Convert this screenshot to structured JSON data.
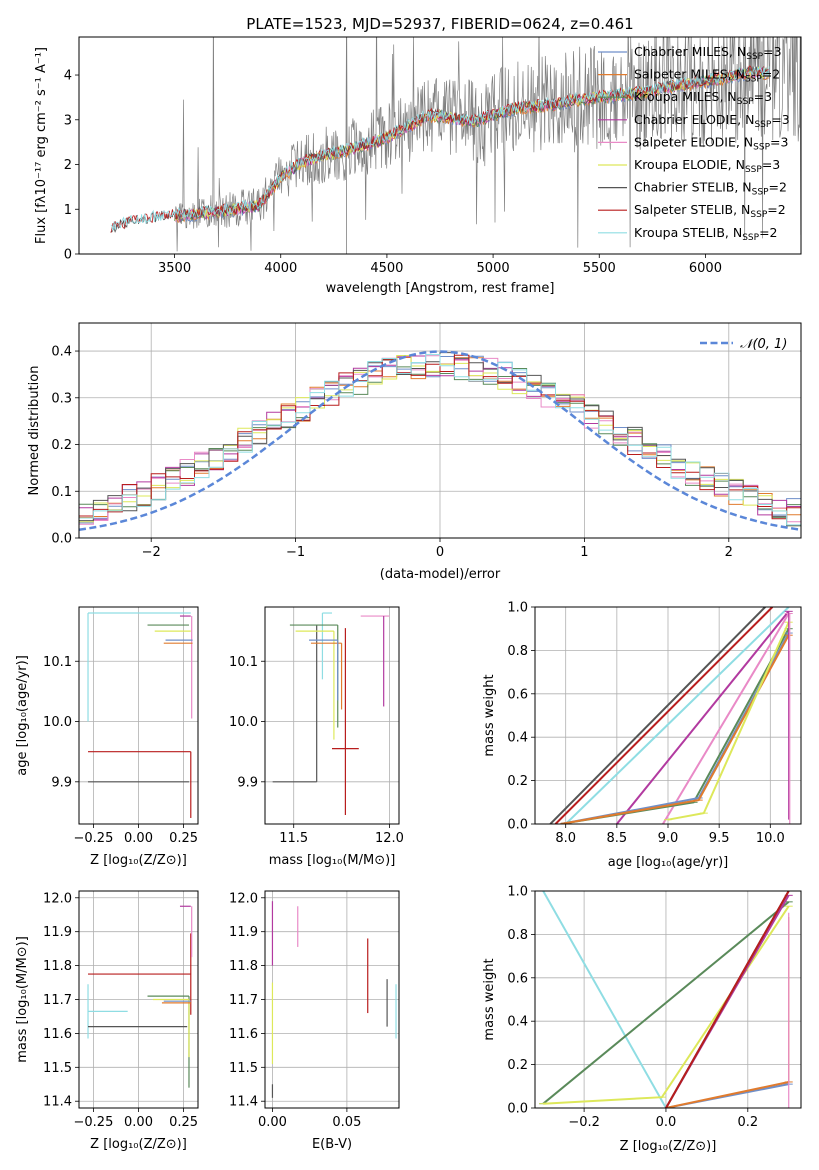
{
  "figure": {
    "title": "PLATE=1523, MJD=52937, FIBERID=0624, z=0.461"
  },
  "colors": {
    "chabrier_miles": "#6f8fc9",
    "salpeter_miles": "#e07b2e",
    "kroupa_miles": "#5a8a5a",
    "chabrier_elodie": "#b23aa0",
    "salpeter_elodie": "#e98ac7",
    "kroupa_elodie": "#dde85a",
    "chabrier_stelib": "#555555",
    "salpeter_stelib": "#b81d1d",
    "kroupa_stelib": "#8fdde3",
    "data": "#808080",
    "gaussian": "#5b87d8"
  },
  "chart_data": [
    {
      "id": "spectrum",
      "type": "line",
      "xlabel": "wavelength [Angstrom, rest frame]",
      "ylabel": "Flux [fλ10⁻¹⁷ erg cm⁻² s⁻¹ A⁻¹]",
      "xlim": [
        3050,
        6450
      ],
      "ylim": [
        0,
        4.85
      ],
      "xticks": [
        "3500",
        "4000",
        "4500",
        "5000",
        "5500",
        "6000"
      ],
      "yticks": [
        "0",
        "1",
        "2",
        "3",
        "4"
      ],
      "legend_loc": "upper right",
      "legend": [
        {
          "label": "Chabrier MILES, N",
          "sub": "SSP",
          "suffix": "=3",
          "color_key": "chabrier_miles"
        },
        {
          "label": "Salpeter MILES, N",
          "sub": "SSP",
          "suffix": "=2",
          "color_key": "salpeter_miles"
        },
        {
          "label": "Kroupa MILES, N",
          "sub": "SSP",
          "suffix": "=3",
          "color_key": "kroupa_miles"
        },
        {
          "label": "Chabrier ELODIE, N",
          "sub": "SSP",
          "suffix": "=3",
          "color_key": "chabrier_elodie"
        },
        {
          "label": "Salpeter ELODIE, N",
          "sub": "SSP",
          "suffix": "=3",
          "color_key": "salpeter_elodie"
        },
        {
          "label": "Kroupa ELODIE, N",
          "sub": "SSP",
          "suffix": "=3",
          "color_key": "kroupa_elodie"
        },
        {
          "label": "Chabrier STELIB, N",
          "sub": "SSP",
          "suffix": "=2",
          "color_key": "chabrier_stelib"
        },
        {
          "label": "Salpeter STELIB, N",
          "sub": "SSP",
          "suffix": "=2",
          "color_key": "salpeter_stelib"
        },
        {
          "label": "Kroupa STELIB, N",
          "sub": "SSP",
          "suffix": "=2",
          "color_key": "kroupa_stelib"
        }
      ],
      "model_curve": {
        "x": [
          3200,
          3300,
          3400,
          3500,
          3600,
          3700,
          3800,
          3900,
          4000,
          4100,
          4200,
          4300,
          4400,
          4500,
          4600,
          4700,
          4800,
          4900,
          5000,
          5100,
          5200,
          5300,
          5400,
          5500,
          5600,
          5700,
          5800,
          5900,
          6000,
          6100,
          6200
        ],
        "y": [
          0.55,
          0.72,
          0.8,
          0.85,
          0.9,
          0.95,
          1.0,
          1.1,
          1.7,
          2.05,
          2.2,
          2.3,
          2.45,
          2.6,
          2.85,
          3.1,
          3.05,
          2.95,
          3.1,
          3.25,
          3.3,
          3.35,
          3.45,
          3.5,
          3.55,
          3.6,
          3.7,
          3.8,
          3.85,
          3.95,
          4.05
        ]
      },
      "data_noise": {
        "x_start": 3500,
        "x_end": 6450,
        "ymax": 4.85
      }
    },
    {
      "id": "residuals",
      "type": "histogram",
      "xlabel": "(data-model)/error",
      "ylabel": "Normed distribution",
      "xlim": [
        -2.5,
        2.5
      ],
      "ylim": [
        0,
        0.46
      ],
      "xticks": [
        "−2",
        "−1",
        "0",
        "1",
        "2"
      ],
      "yticks": [
        "0.0",
        "0.1",
        "0.2",
        "0.3",
        "0.4"
      ],
      "legend": [
        {
          "label": "𝒩(0, 1)",
          "color_key": "gaussian"
        }
      ],
      "bin_width": 0.1,
      "base_heights_note": "per-bin values follow N(0,1) with scatter",
      "series_colors": [
        "chabrier_miles",
        "salpeter_miles",
        "kroupa_miles",
        "chabrier_elodie",
        "salpeter_elodie",
        "kroupa_elodie",
        "chabrier_stelib",
        "salpeter_stelib",
        "kroupa_stelib"
      ]
    },
    {
      "id": "age_vs_Z",
      "type": "errorbar",
      "xlabel": "Z [log₁₀(Z/Z⊙)]",
      "ylabel": "age  [log₁₀(age/yr)]",
      "xlim": [
        -0.33,
        0.33
      ],
      "ylim": [
        9.83,
        10.19
      ],
      "xticks": [
        "−0.25",
        "0.00",
        "0.25"
      ],
      "xtick_values": [
        -0.25,
        0.0,
        0.25
      ],
      "yticks": [
        "9.9",
        "10.0",
        "10.1"
      ],
      "ytick_values": [
        9.9,
        10.0,
        10.1
      ],
      "points": [
        {
          "color_key": "kroupa_stelib",
          "x": -0.28,
          "xerr": [
            0.0,
            0.57
          ],
          "y": 10.18,
          "yerr": [
            0.18,
            0.0
          ]
        },
        {
          "color_key": "salpeter_stelib",
          "x": 0.29,
          "xerr": [
            0.57,
            0.0
          ],
          "y": 9.95,
          "yerr": [
            0.11,
            0.0
          ]
        },
        {
          "color_key": "chabrier_stelib",
          "x": 0.28,
          "xerr": [
            0.56,
            0.0
          ],
          "y": 9.9,
          "yerr": [
            0.0,
            0.0
          ]
        },
        {
          "color_key": "chabrier_elodie",
          "x": 0.29,
          "xerr": [
            0.06,
            0.0
          ],
          "y": 10.175,
          "yerr": [
            0.0,
            0.0
          ]
        },
        {
          "color_key": "salpeter_elodie",
          "x": 0.295,
          "xerr": [
            0.0,
            0.0
          ],
          "y": 10.175,
          "yerr": [
            0.17,
            0.0
          ]
        },
        {
          "color_key": "kroupa_miles",
          "x": 0.28,
          "xerr": [
            0.23,
            0.0
          ],
          "y": 10.16,
          "yerr": [
            0.0,
            0.0
          ]
        },
        {
          "color_key": "kroupa_elodie",
          "x": 0.29,
          "xerr": [
            0.2,
            0.0
          ],
          "y": 10.15,
          "yerr": [
            0.0,
            0.0
          ]
        },
        {
          "color_key": "salpeter_miles",
          "x": 0.3,
          "xerr": [
            0.16,
            0.0
          ],
          "y": 10.13,
          "yerr": [
            0.0,
            0.0
          ]
        },
        {
          "color_key": "chabrier_miles",
          "x": 0.3,
          "xerr": [
            0.15,
            0.0
          ],
          "y": 10.135,
          "yerr": [
            0.0,
            0.0
          ]
        }
      ]
    },
    {
      "id": "age_vs_mass",
      "type": "errorbar",
      "xlabel": "mass [log₁₀(M/M⊙)]",
      "ylabel": "",
      "xlim": [
        11.35,
        12.05
      ],
      "ylim": [
        9.83,
        10.19
      ],
      "xticks": [
        "11.5",
        "12.0"
      ],
      "xtick_values": [
        11.5,
        12.0
      ],
      "yticks": [
        "9.9",
        "10.0",
        "10.1"
      ],
      "ytick_values": [
        9.9,
        10.0,
        10.1
      ],
      "points": [
        {
          "color_key": "salpeter_elodie",
          "x": 11.85,
          "xerr": [
            0.0,
            0.15
          ],
          "y": 10.175,
          "yerr": [
            0.0,
            0.0
          ]
        },
        {
          "color_key": "chabrier_elodie",
          "x": 11.97,
          "xerr": [
            0.0,
            0.0
          ],
          "y": 10.175,
          "yerr": [
            0.15,
            0.0
          ]
        },
        {
          "color_key": "kroupa_stelib",
          "x": 11.65,
          "xerr": [
            0.0,
            0.05
          ],
          "y": 10.18,
          "yerr": [
            0.11,
            0.0
          ]
        },
        {
          "color_key": "chabrier_stelib",
          "x": 11.62,
          "xerr": [
            0.23,
            0.0
          ],
          "y": 9.9,
          "yerr": [
            0.0,
            0.26
          ]
        },
        {
          "color_key": "salpeter_stelib",
          "x": 11.77,
          "xerr": [
            0.07,
            0.07
          ],
          "y": 9.955,
          "yerr": [
            0.11,
            0.2
          ]
        },
        {
          "color_key": "kroupa_miles",
          "x": 11.73,
          "xerr": [
            0.25,
            0.0
          ],
          "y": 10.16,
          "yerr": [
            0.17,
            0.0
          ]
        },
        {
          "color_key": "kroupa_elodie",
          "x": 11.71,
          "xerr": [
            0.2,
            0.0
          ],
          "y": 10.15,
          "yerr": [
            0.18,
            0.0
          ]
        },
        {
          "color_key": "salpeter_miles",
          "x": 11.75,
          "xerr": [
            0.16,
            0.0
          ],
          "y": 10.13,
          "yerr": [
            0.11,
            0.0
          ]
        },
        {
          "color_key": "chabrier_miles",
          "x": 11.73,
          "xerr": [
            0.15,
            0.0
          ],
          "y": 10.135,
          "yerr": [
            0.1,
            0.0
          ]
        }
      ]
    },
    {
      "id": "weight_vs_age",
      "type": "line",
      "xlabel": "age  [log₁₀(age/yr)]",
      "ylabel": "mass weight",
      "xlim": [
        7.7,
        10.3
      ],
      "ylim": [
        0,
        1.0
      ],
      "xticks": [
        "8.0",
        "8.5",
        "9.0",
        "9.5",
        "10.0"
      ],
      "xtick_values": [
        8.0,
        8.5,
        9.0,
        9.5,
        10.0
      ],
      "yticks": [
        "0.0",
        "0.2",
        "0.4",
        "0.6",
        "0.8",
        "1.0"
      ],
      "ytick_values": [
        0.0,
        0.2,
        0.4,
        0.6,
        0.8,
        1.0
      ],
      "series": [
        {
          "color_key": "chabrier_stelib",
          "x": [
            7.85,
            9.95
          ],
          "y": [
            0.0,
            1.0
          ]
        },
        {
          "color_key": "salpeter_stelib",
          "x": [
            7.9,
            10.02
          ],
          "y": [
            0.0,
            1.0
          ]
        },
        {
          "color_key": "kroupa_stelib",
          "x": [
            8.0,
            10.18
          ],
          "y": [
            0.0,
            1.0
          ]
        },
        {
          "color_key": "chabrier_elodie",
          "x": [
            8.5,
            10.18
          ],
          "y": [
            0.0,
            0.98
          ]
        },
        {
          "color_key": "salpeter_elodie",
          "x": [
            8.95,
            10.18
          ],
          "y": [
            0.0,
            0.97
          ]
        },
        {
          "color_key": "kroupa_miles",
          "x": [
            7.95,
            9.25,
            10.18
          ],
          "y": [
            0.0,
            0.1,
            0.9
          ]
        },
        {
          "color_key": "chabrier_miles",
          "x": [
            7.95,
            9.3,
            10.18
          ],
          "y": [
            0.0,
            0.12,
            0.88
          ]
        },
        {
          "color_key": "salpeter_miles",
          "x": [
            7.95,
            9.3,
            10.18
          ],
          "y": [
            0.0,
            0.11,
            0.87
          ]
        },
        {
          "color_key": "kroupa_elodie",
          "x": [
            9.0,
            9.35,
            10.18
          ],
          "y": [
            0.02,
            0.05,
            0.93
          ]
        }
      ],
      "vbars": [
        {
          "color_key": "chabrier_elodie",
          "x": 10.18,
          "y": [
            0.02,
            0.98
          ]
        },
        {
          "color_key": "salpeter_elodie",
          "x": 10.19,
          "y": [
            0.0,
            0.97
          ]
        }
      ]
    },
    {
      "id": "mass_vs_Z",
      "type": "errorbar",
      "xlabel": "Z [log₁₀(Z/Z⊙)]",
      "ylabel": "mass [log₁₀(M/M⊙)]",
      "xlim": [
        -0.33,
        0.33
      ],
      "ylim": [
        11.38,
        12.02
      ],
      "xticks": [
        "−0.25",
        "0.00",
        "0.25"
      ],
      "xtick_values": [
        -0.25,
        0.0,
        0.25
      ],
      "yticks": [
        "11.4",
        "11.5",
        "11.6",
        "11.7",
        "11.8",
        "11.9",
        "12.0"
      ],
      "ytick_values": [
        11.4,
        11.5,
        11.6,
        11.7,
        11.8,
        11.9,
        12.0
      ],
      "points": [
        {
          "color_key": "salpeter_stelib",
          "x": 0.29,
          "xerr": [
            0.57,
            0.0
          ],
          "y": 11.775,
          "yerr": [
            0.12,
            0.12
          ]
        },
        {
          "color_key": "kroupa_stelib",
          "x": -0.28,
          "xerr": [
            0.0,
            0.22
          ],
          "y": 11.665,
          "yerr": [
            0.08,
            0.08
          ]
        },
        {
          "color_key": "chabrier_stelib",
          "x": 0.27,
          "xerr": [
            0.55,
            0.0
          ],
          "y": 11.62,
          "yerr": [
            0.0,
            0.0
          ]
        },
        {
          "color_key": "salpeter_elodie",
          "x": 0.295,
          "xerr": [
            0.0,
            0.0
          ],
          "y": 11.975,
          "yerr": [
            0.15,
            0.0
          ]
        },
        {
          "color_key": "chabrier_elodie",
          "x": 0.29,
          "xerr": [
            0.06,
            0.0
          ],
          "y": 11.975,
          "yerr": [
            0.0,
            0.0
          ]
        },
        {
          "color_key": "kroupa_miles",
          "x": 0.28,
          "xerr": [
            0.23,
            0.0
          ],
          "y": 11.71,
          "yerr": [
            0.27,
            0.0
          ]
        },
        {
          "color_key": "kroupa_elodie",
          "x": 0.28,
          "xerr": [
            0.2,
            0.0
          ],
          "y": 11.7,
          "yerr": [
            0.17,
            0.0
          ]
        },
        {
          "color_key": "salpeter_miles",
          "x": 0.29,
          "xerr": [
            0.16,
            0.0
          ],
          "y": 11.69,
          "yerr": [
            0.0,
            0.0
          ]
        },
        {
          "color_key": "chabrier_miles",
          "x": 0.29,
          "xerr": [
            0.15,
            0.0
          ],
          "y": 11.695,
          "yerr": [
            0.0,
            0.0
          ]
        }
      ]
    },
    {
      "id": "mass_vs_ebv",
      "type": "errorbar",
      "xlabel": "E(B-V)",
      "ylabel": "",
      "xlim": [
        -0.005,
        0.085
      ],
      "ylim": [
        11.38,
        12.02
      ],
      "xticks": [
        "0.00",
        "0.05"
      ],
      "xtick_values": [
        0.0,
        0.05
      ],
      "yticks": [
        "11.4",
        "11.5",
        "11.6",
        "11.7",
        "11.8",
        "11.9",
        "12.0"
      ],
      "ytick_values": [
        11.4,
        11.5,
        11.6,
        11.7,
        11.8,
        11.9,
        12.0
      ],
      "points": [
        {
          "color_key": "chabrier_elodie",
          "x": 0.0,
          "y": 11.9,
          "yerr": [
            0.1,
            0.09
          ]
        },
        {
          "color_key": "salpeter_elodie",
          "x": 0.017,
          "y": 11.915,
          "yerr": [
            0.06,
            0.06
          ]
        },
        {
          "color_key": "kroupa_elodie",
          "x": 0.0,
          "y": 11.63,
          "yerr": [
            0.12,
            0.12
          ]
        },
        {
          "color_key": "chabrier_stelib",
          "x": 0.0,
          "y": 11.43,
          "yerr": [
            0.02,
            0.02
          ]
        },
        {
          "color_key": "salpeter_stelib",
          "x": 0.064,
          "y": 11.77,
          "yerr": [
            0.11,
            0.11
          ]
        },
        {
          "color_key": "chabrier_stelib",
          "x": 0.077,
          "y": 11.69,
          "yerr": [
            0.07,
            0.07
          ]
        },
        {
          "color_key": "kroupa_stelib",
          "x": 0.083,
          "y": 11.665,
          "yerr": [
            0.08,
            0.08
          ]
        }
      ]
    },
    {
      "id": "weight_vs_Z",
      "type": "line",
      "xlabel": "Z [log₁₀(Z/Z⊙)]",
      "ylabel": "mass weight",
      "xlim": [
        -0.32,
        0.33
      ],
      "ylim": [
        0,
        1.0
      ],
      "xticks": [
        "−0.2",
        "0.0",
        "0.2"
      ],
      "xtick_values": [
        -0.2,
        0.0,
        0.2
      ],
      "yticks": [
        "0.0",
        "0.2",
        "0.4",
        "0.6",
        "0.8",
        "1.0"
      ],
      "ytick_values": [
        0.0,
        0.2,
        0.4,
        0.6,
        0.8,
        1.0
      ],
      "series": [
        {
          "color_key": "kroupa_stelib",
          "x": [
            -0.3,
            0.0
          ],
          "y": [
            1.0,
            0.0
          ]
        },
        {
          "color_key": "kroupa_miles",
          "x": [
            -0.3,
            0.3
          ],
          "y": [
            0.02,
            0.95
          ]
        },
        {
          "color_key": "kroupa_elodie",
          "x": [
            -0.3,
            -0.01,
            0.3
          ],
          "y": [
            0.02,
            0.05,
            0.93
          ]
        },
        {
          "color_key": "chabrier_miles",
          "x": [
            0.0,
            0.3
          ],
          "y": [
            0.0,
            0.11
          ]
        },
        {
          "color_key": "salpeter_miles",
          "x": [
            0.0,
            0.3
          ],
          "y": [
            0.0,
            0.12
          ]
        },
        {
          "color_key": "chabrier_elodie",
          "x": [
            0.0,
            0.3
          ],
          "y": [
            0.0,
            0.98
          ]
        },
        {
          "color_key": "chabrier_stelib",
          "x": [
            0.0,
            0.3
          ],
          "y": [
            0.0,
            1.0
          ]
        },
        {
          "color_key": "salpeter_stelib",
          "x": [
            0.0,
            0.3
          ],
          "y": [
            0.0,
            1.0
          ]
        }
      ],
      "vbars": [
        {
          "color_key": "salpeter_miles",
          "x": 0.3,
          "y": [
            0.12,
            0.88
          ]
        },
        {
          "color_key": "salpeter_elodie",
          "x": 0.3,
          "y": [
            0.0,
            0.9
          ]
        }
      ]
    }
  ]
}
